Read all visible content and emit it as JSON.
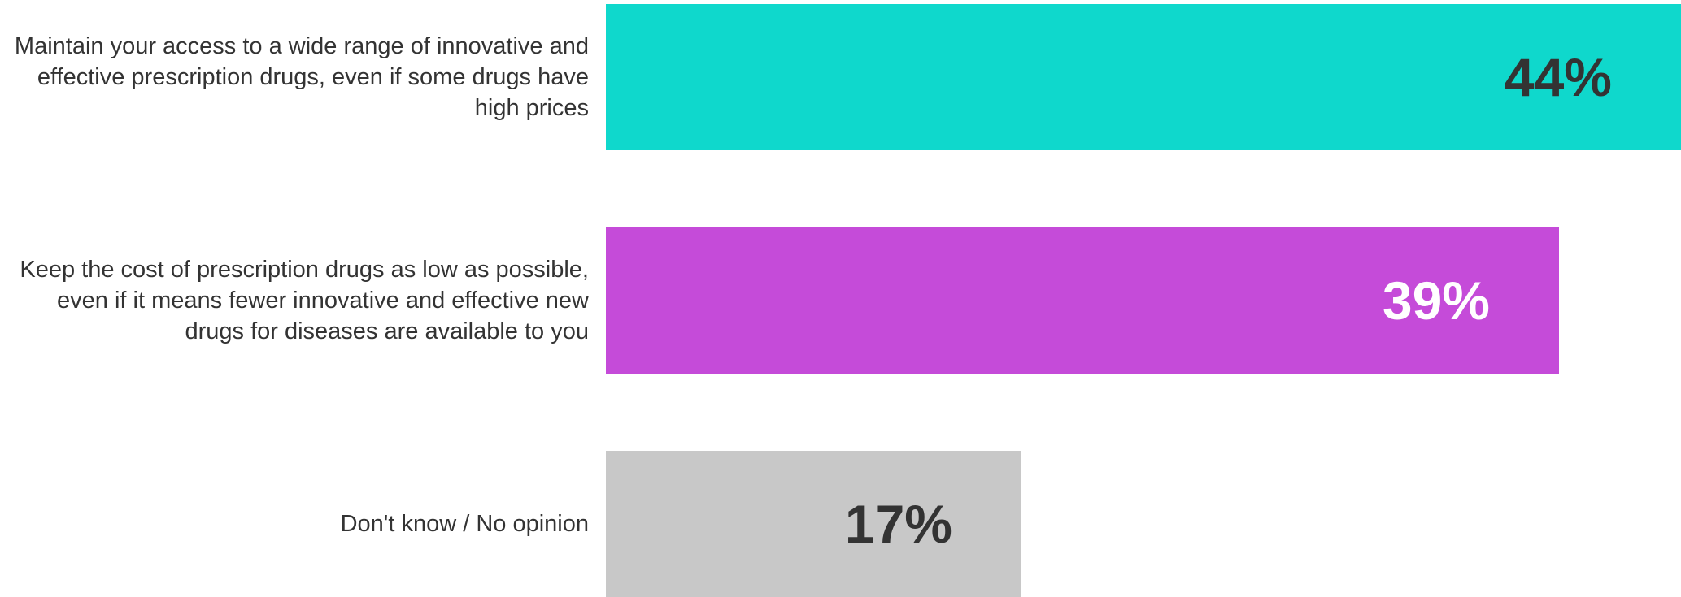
{
  "chart_data": {
    "type": "bar",
    "orientation": "horizontal",
    "categories": [
      "Maintain your access to a wide range of innovative and effective prescription drugs, even if some drugs have high prices",
      "Keep the cost of prescription drugs as low as possible, even if it means fewer innovative and effective new drugs for diseases are available to you",
      "Don't know / No opinion"
    ],
    "values": [
      44,
      39,
      17
    ],
    "value_labels": [
      "44%",
      "39%",
      "17%"
    ],
    "colors": [
      "#0fd8cc",
      "#c54bd9",
      "#c8c8c8"
    ],
    "value_label_colors": [
      "#333333",
      "#ffffff",
      "#333333"
    ],
    "title": "",
    "xlabel": "",
    "ylabel": "",
    "xlim": [
      0,
      44
    ],
    "grid": false,
    "legend": "none"
  }
}
